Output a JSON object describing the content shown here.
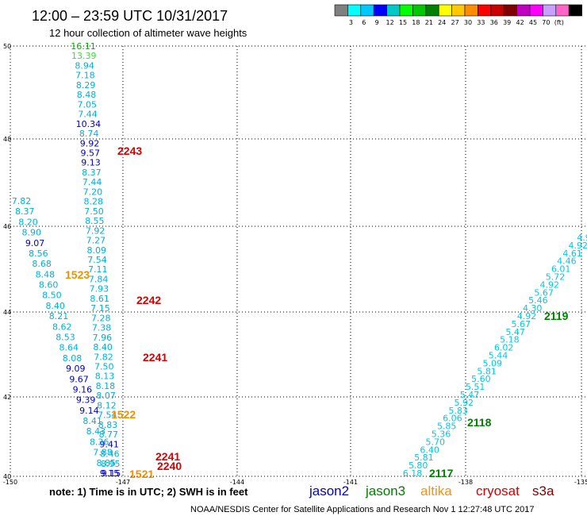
{
  "header": {
    "title": "12:00 – 23:59 UTC 10/31/2017",
    "subtitle": "12 hour collection of altimeter wave heights"
  },
  "legend": {
    "colors": [
      "#808080",
      "#00ffff",
      "#00c8ff",
      "#0000ff",
      "#00c8c8",
      "#00ff00",
      "#00c800",
      "#008000",
      "#ffff00",
      "#ffc800",
      "#ff8c00",
      "#ff0000",
      "#c80000",
      "#800000",
      "#c000c0",
      "#ff00ff",
      "#c8a0ff",
      "#ff64c8",
      "#000000"
    ],
    "labels": [
      "3",
      "6",
      "9",
      "12",
      "15",
      "18",
      "21",
      "24",
      "27",
      "30",
      "33",
      "36",
      "39",
      "42",
      "45",
      "70",
      "(ft)"
    ]
  },
  "axes": {
    "x_ticks": [
      "-150",
      "-147",
      "-144",
      "-141",
      "-138",
      "-135"
    ],
    "y_ticks": [
      "50",
      "48",
      "46",
      "44",
      "42",
      "40"
    ]
  },
  "tracks": [
    {
      "name": "jason2-track-1",
      "color": "#00b0d8",
      "values": [
        {
          "t": "16.11",
          "c": "#00b000"
        },
        {
          "t": "13.39",
          "c": "#40d840"
        },
        {
          "t": "8.94"
        },
        {
          "t": "7.18"
        },
        {
          "t": "8.29"
        },
        {
          "t": "8.48"
        },
        {
          "t": "7.05"
        },
        {
          "t": "7.44"
        },
        {
          "t": "10.34",
          "c": "#0000c8"
        },
        {
          "t": "8.74"
        },
        {
          "t": "9.92",
          "c": "#0000c8"
        },
        {
          "t": "9.57",
          "c": "#0000c8"
        },
        {
          "t": "9.13",
          "c": "#0000c8"
        },
        {
          "t": "8.37"
        },
        {
          "t": "7.44"
        },
        {
          "t": "7.20"
        },
        {
          "t": "8.28"
        },
        {
          "t": "7.50"
        },
        {
          "t": "8.55"
        },
        {
          "t": "7.92"
        },
        {
          "t": "7.27"
        },
        {
          "t": "8.09"
        },
        {
          "t": "7.54"
        },
        {
          "t": "7.11"
        },
        {
          "t": "7.84"
        },
        {
          "t": "7.93"
        },
        {
          "t": "8.61"
        },
        {
          "t": "7.15"
        },
        {
          "t": "7.28"
        },
        {
          "t": "7.38"
        },
        {
          "t": "7.96"
        },
        {
          "t": "8.40"
        },
        {
          "t": "7.82"
        },
        {
          "t": "7.50"
        },
        {
          "t": "8.13"
        },
        {
          "t": "8.18"
        },
        {
          "t": "8.07"
        },
        {
          "t": "8.12"
        },
        {
          "t": "7.54"
        },
        {
          "t": "8.83"
        },
        {
          "t": "8.77"
        },
        {
          "t": "9.41",
          "c": "#0000c8"
        },
        {
          "t": "8.46"
        },
        {
          "t": "8.95"
        },
        {
          "t": "9.15",
          "c": "#0000c8"
        }
      ]
    },
    {
      "name": "jason2-track-2",
      "color": "#00b0d8",
      "values": [
        {
          "t": "7.82"
        },
        {
          "t": "8.37"
        },
        {
          "t": "8.20"
        },
        {
          "t": "8.90"
        },
        {
          "t": "9.07",
          "c": "#0000c8"
        },
        {
          "t": "8.56"
        },
        {
          "t": "8.68"
        },
        {
          "t": "8.48"
        },
        {
          "t": "8.60"
        },
        {
          "t": "8.50"
        },
        {
          "t": "8.40"
        },
        {
          "t": "8.21"
        },
        {
          "t": "8.62"
        },
        {
          "t": "8.53"
        },
        {
          "t": "8.64"
        },
        {
          "t": "8.08"
        },
        {
          "t": "9.09",
          "c": "#0000c8"
        },
        {
          "t": "9.67",
          "c": "#0000c8"
        },
        {
          "t": "9.16",
          "c": "#0000c8"
        },
        {
          "t": "9.39",
          "c": "#0000c8"
        },
        {
          "t": "9.14",
          "c": "#0000c8"
        },
        {
          "t": "8.41"
        },
        {
          "t": "8.43"
        },
        {
          "t": "8.36"
        },
        {
          "t": "7.88"
        },
        {
          "t": "8.85"
        },
        {
          "t": "9.15",
          "c": "#0000c8"
        }
      ]
    },
    {
      "name": "jason2-track-3",
      "color": "#00c8e8",
      "values": [
        {
          "t": "6.18"
        },
        {
          "t": "5.80"
        },
        {
          "t": "5.81"
        },
        {
          "t": "6.40"
        },
        {
          "t": "5.70"
        },
        {
          "t": "5.36"
        },
        {
          "t": "5.85"
        },
        {
          "t": "6.06"
        },
        {
          "t": "5.83"
        },
        {
          "t": "5.92"
        },
        {
          "t": "5.47"
        },
        {
          "t": "5.51"
        },
        {
          "t": "5.60"
        },
        {
          "t": "5.81"
        },
        {
          "t": "5.09"
        },
        {
          "t": "5.44"
        },
        {
          "t": "6.02"
        },
        {
          "t": "5.18"
        },
        {
          "t": "5.47"
        },
        {
          "t": "5.67"
        },
        {
          "t": "4.92"
        },
        {
          "t": "4.30"
        },
        {
          "t": "5.46"
        },
        {
          "t": "5.67"
        },
        {
          "t": "4.92"
        },
        {
          "t": "5.72"
        },
        {
          "t": "6.01"
        },
        {
          "t": "4.46"
        },
        {
          "t": "4.61"
        },
        {
          "t": "4.92"
        },
        {
          "t": "4.9"
        }
      ]
    }
  ],
  "passes": [
    {
      "label": "2243",
      "color": "#d80000"
    },
    {
      "label": "2242",
      "color": "#d80000"
    },
    {
      "label": "2241",
      "color": "#d80000"
    },
    {
      "label": "2241",
      "color": "#d80000"
    },
    {
      "label": "2240",
      "color": "#d80000"
    },
    {
      "label": "1523",
      "color": "#f09000"
    },
    {
      "label": "1522",
      "color": "#f09000"
    },
    {
      "label": "1521",
      "color": "#f09000"
    },
    {
      "label": "2119",
      "color": "#008000"
    },
    {
      "label": "2118",
      "color": "#008000"
    },
    {
      "label": "2117",
      "color": "#008000"
    }
  ],
  "footer": {
    "note": "note:  1) Time is in UTC;  2) SWH is in feet",
    "satellites": [
      {
        "name": "jason2",
        "color": "#0000d0"
      },
      {
        "name": "jason3",
        "color": "#008000"
      },
      {
        "name": "altika",
        "color": "#ff9000"
      },
      {
        "name": "cryosat",
        "color": "#d80000"
      },
      {
        "name": "s3a",
        "color": "#800000"
      }
    ],
    "credit": "NOAA/NESDIS Center for Satellite Applications and Research    Nov  1 12:27:48 UTC 2017"
  }
}
